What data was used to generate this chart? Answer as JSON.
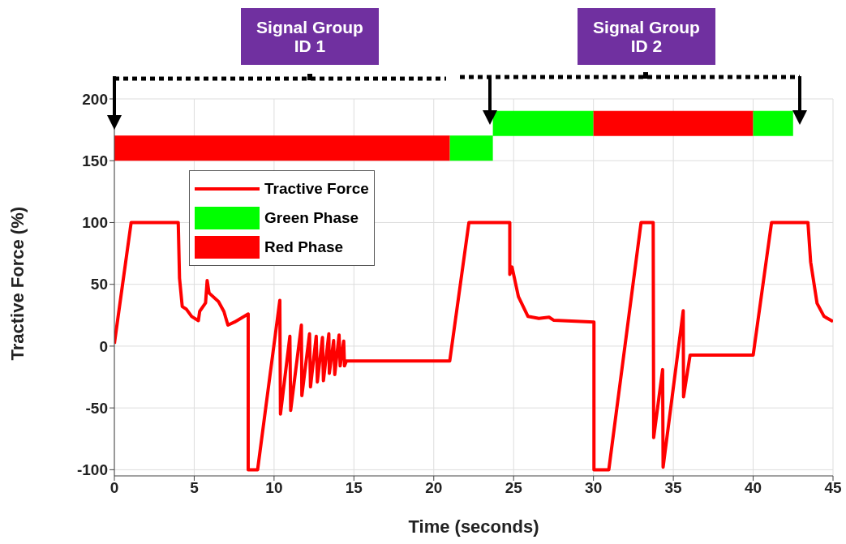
{
  "chart_data": {
    "type": "line",
    "xlabel": "Time (seconds)",
    "ylabel": "Tractive Force (%)",
    "xlim": [
      0,
      45
    ],
    "xticks": [
      0,
      5,
      10,
      15,
      20,
      25,
      30,
      35,
      40,
      45
    ],
    "ylim": [
      -105,
      200
    ],
    "yticks": [
      -100,
      -50,
      0,
      50,
      100,
      150,
      200
    ],
    "grid": true,
    "legend": "top left",
    "line_style": "solid",
    "annotations": [
      "Signal Group ID 1",
      "Signal Group ID 2"
    ],
    "series": [
      {
        "name": "Tractive Force",
        "color": "#ff0000",
        "x": [
          0,
          1.05,
          4.0,
          4.08,
          4.25,
          4.5,
          4.84,
          5.26,
          5.34,
          5.71,
          5.81,
          5.93,
          6.52,
          6.86,
          7.11,
          7.53,
          8.38,
          8.38,
          8.97,
          10.36,
          10.4,
          10.99,
          11.04,
          11.71,
          11.74,
          12.22,
          12.28,
          12.64,
          12.71,
          13.03,
          13.09,
          13.43,
          13.46,
          13.73,
          13.8,
          14.07,
          14.14,
          14.36,
          14.41,
          14.53,
          21.0,
          22.2,
          24.76,
          24.76,
          24.9,
          25.3,
          25.9,
          26.58,
          27.22,
          27.5,
          30.03,
          30.03,
          30.96,
          32.98,
          33.74,
          33.77,
          34.33,
          34.36,
          35.62,
          35.64,
          36.05,
          40.0,
          41.15,
          43.43,
          43.6,
          44.0,
          44.44,
          45
        ],
        "values": [
          2,
          100,
          100,
          55,
          32,
          30,
          24,
          20.6,
          28,
          35,
          53,
          43,
          36,
          28,
          17,
          19.5,
          26,
          -100,
          -100,
          37,
          -55,
          8,
          -52,
          17,
          -40,
          10,
          -33,
          8,
          -29,
          7,
          -28,
          10,
          -22,
          4.5,
          -23,
          9,
          -16,
          4,
          -16,
          -12,
          -12,
          100,
          100,
          58,
          64,
          40,
          24,
          22.4,
          23.4,
          21,
          19.5,
          -100,
          -100,
          100,
          100,
          -74,
          -19,
          -98,
          28.6,
          -41,
          -7.3,
          -7.3,
          100,
          100,
          68,
          34.6,
          24,
          20
        ]
      },
      {
        "name": "Green Phase",
        "color": "#00ff00",
        "x": [
          21,
          23.7
        ],
        "values": [
          170,
          170
        ],
        "lower": [
          150,
          150
        ],
        "upper": [
          170,
          170
        ]
      },
      {
        "name": "Red Phase",
        "color": "#ff0000",
        "x": [
          0,
          21
        ],
        "values": [
          170,
          170
        ],
        "lower": [
          150,
          150
        ],
        "upper": [
          170,
          170
        ]
      },
      {
        "color": "#00ff00",
        "x": [
          23.7,
          30
        ],
        "values": [
          190,
          190
        ],
        "lower": [
          170,
          170
        ],
        "upper": [
          190,
          190
        ]
      },
      {
        "color": "#ff0000",
        "x": [
          30,
          40
        ],
        "values": [
          190,
          190
        ],
        "lower": [
          170,
          170
        ],
        "upper": [
          190,
          190
        ]
      },
      {
        "color": "#00ff00",
        "x": [
          40,
          42.5
        ],
        "values": [
          190,
          190
        ],
        "lower": [
          170,
          170
        ],
        "upper": [
          190,
          190
        ]
      }
    ]
  }
}
